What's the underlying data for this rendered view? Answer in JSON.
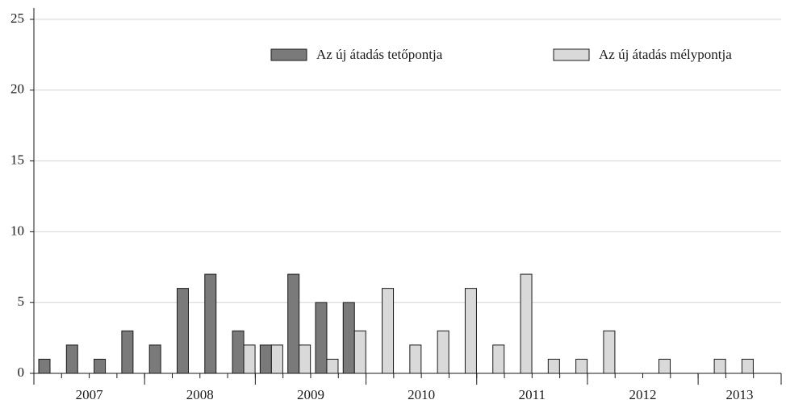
{
  "chart_data": {
    "type": "bar",
    "categories": [
      null,
      null,
      null,
      null,
      null,
      null,
      null,
      null,
      null,
      null,
      null,
      null,
      null,
      null,
      null,
      null,
      null,
      null,
      null,
      null,
      null,
      null,
      null,
      null,
      null,
      null,
      null
    ],
    "groups": [
      {
        "label": "2007",
        "size": 4
      },
      {
        "label": "2008",
        "size": 4
      },
      {
        "label": "2009",
        "size": 4
      },
      {
        "label": "2010",
        "size": 4
      },
      {
        "label": "2011",
        "size": 4
      },
      {
        "label": "2012",
        "size": 4
      },
      {
        "label": "2013",
        "size": 3
      }
    ],
    "series": [
      {
        "name": "Az új átadás tetőpontja",
        "color": "#7a7a7a",
        "values": [
          1,
          2,
          1,
          3,
          2,
          6,
          7,
          3,
          2,
          7,
          5,
          5,
          null,
          null,
          null,
          null,
          null,
          null,
          null,
          null,
          null,
          null,
          null,
          null,
          null,
          null,
          null
        ]
      },
      {
        "name": "Az új átadás mélypontja",
        "color": "#d9d9d9",
        "values": [
          null,
          null,
          null,
          null,
          null,
          null,
          null,
          2,
          2,
          2,
          1,
          3,
          6,
          2,
          3,
          6,
          2,
          7,
          1,
          1,
          3,
          null,
          1,
          null,
          1,
          1,
          null
        ]
      }
    ],
    "ylim": [
      0,
      25
    ],
    "yticks": [
      0,
      5,
      10,
      15,
      20,
      25
    ],
    "grid": true,
    "legend": "top-right"
  }
}
